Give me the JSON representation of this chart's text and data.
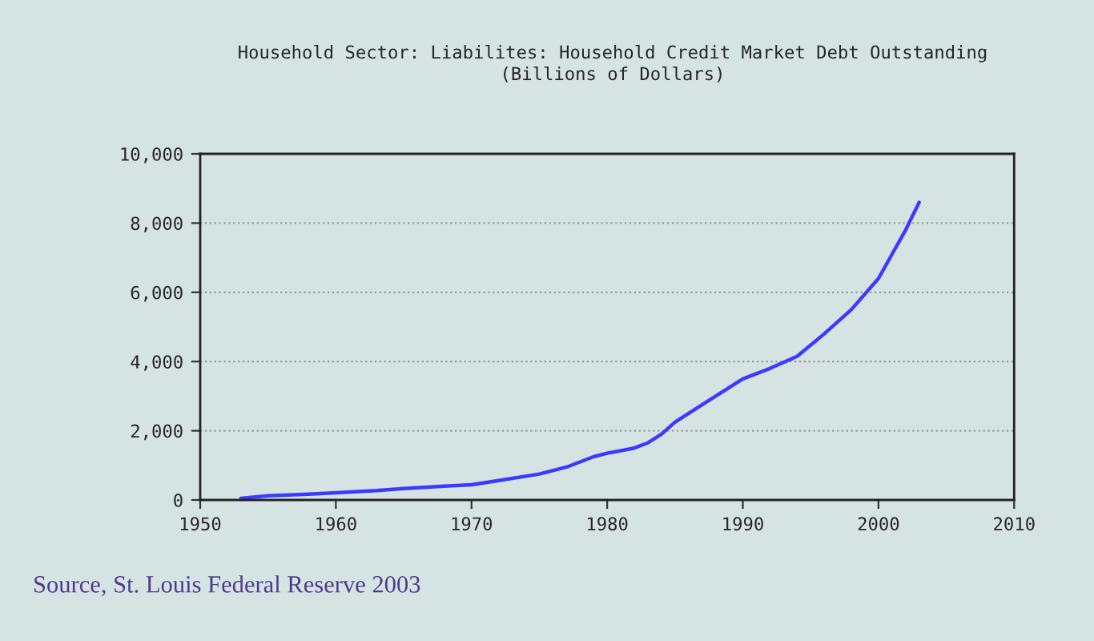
{
  "chart_data": {
    "type": "line",
    "title": "Household Sector: Liabilites: Household Credit Market Debt Outstanding\n(Billions of Dollars)",
    "x": [
      1953,
      1955,
      1958,
      1960,
      1963,
      1965,
      1968,
      1970,
      1972,
      1975,
      1977,
      1979,
      1980,
      1982,
      1983,
      1984,
      1985,
      1987,
      1989,
      1990,
      1992,
      1994,
      1996,
      1998,
      2000,
      2001,
      2002,
      2003
    ],
    "series": [
      {
        "color": "#3b3bff",
        "values": [
          50,
          120,
          170,
          210,
          270,
          330,
          400,
          440,
          560,
          750,
          950,
          1250,
          1350,
          1500,
          1650,
          1900,
          2250,
          2750,
          3250,
          3500,
          3800,
          4150,
          4800,
          5500,
          6400,
          7100,
          7800,
          8600
        ]
      }
    ],
    "xlim": [
      1950,
      2010
    ],
    "xticks": [
      1950,
      1960,
      1970,
      1980,
      1990,
      2000,
      2010
    ],
    "ylim": [
      0,
      10000
    ],
    "yticks": [
      {
        "value": 0,
        "label": "0"
      },
      {
        "value": 2000,
        "label": "2,000"
      },
      {
        "value": 4000,
        "label": "4,000"
      },
      {
        "value": 6000,
        "label": "6,000"
      },
      {
        "value": 8000,
        "label": "8,000"
      },
      {
        "value": 10000,
        "label": "10,000"
      }
    ],
    "grid": "y",
    "line_style": "solid",
    "marker": "none",
    "legend": false,
    "annotations": [
      "Source, St. Louis Federal Reserve 2003"
    ]
  }
}
